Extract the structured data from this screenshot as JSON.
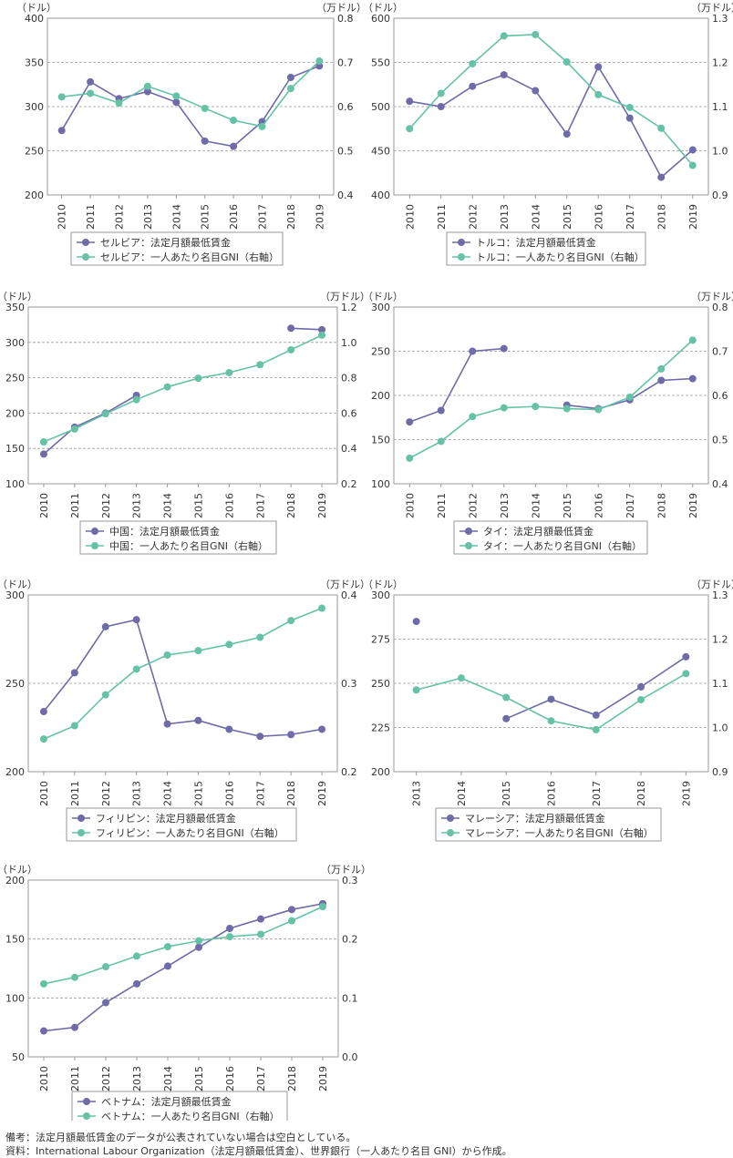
{
  "colors": {
    "wage": "#6f6aa8",
    "gni": "#66c2a7",
    "axis": "#9a9a9a",
    "text": "#333333"
  },
  "units": {
    "left": "（ドル）",
    "right": "（万ドル）"
  },
  "notes": {
    "remark": "備考：法定月額最低賃金のデータが公表されていない場合は空白としている。",
    "source": "資料：International Labour Organization（法定月額最低賃金）、世界銀行（一人あたり名目 GNI）から作成。"
  },
  "chart_data": [
    {
      "type": "line",
      "country": "serbia",
      "x": [
        "2010",
        "2011",
        "2012",
        "2013",
        "2014",
        "2015",
        "2016",
        "2017",
        "2018",
        "2019"
      ],
      "left_ticks": [
        "200",
        "250",
        "300",
        "350",
        "400"
      ],
      "ylim": [
        200,
        400
      ],
      "right_ticks": [
        "0.4",
        "0.5",
        "0.6",
        "0.7",
        "0.8"
      ],
      "y2lim": [
        0.4,
        0.8
      ],
      "series": [
        {
          "name": "セルビア：法定月額最低賃金",
          "axis": "left",
          "values": [
            273,
            328,
            309,
            317,
            305,
            261,
            255,
            283,
            333,
            346
          ]
        },
        {
          "name": "セルビア：一人あたり名目GNI（右軸）",
          "axis": "right",
          "values": [
            0.622,
            0.63,
            0.608,
            0.646,
            0.624,
            0.596,
            0.569,
            0.555,
            0.641,
            0.703
          ]
        }
      ]
    },
    {
      "type": "line",
      "country": "turkey",
      "x": [
        "2010",
        "2011",
        "2012",
        "2013",
        "2014",
        "2015",
        "2016",
        "2017",
        "2018",
        "2019"
      ],
      "left_ticks": [
        "400",
        "450",
        "500",
        "550",
        "600"
      ],
      "ylim": [
        400,
        600
      ],
      "right_ticks": [
        "0.9",
        "1.0",
        "1.1",
        "1.2",
        "1.3"
      ],
      "y2lim": [
        0.9,
        1.3
      ],
      "series": [
        {
          "name": "トルコ：法定月額最低賃金",
          "axis": "left",
          "values": [
            506,
            500,
            523,
            536,
            518,
            469,
            545,
            487,
            420,
            451
          ]
        },
        {
          "name": "トルコ：一人あたり名目GNI（右軸）",
          "axis": "right",
          "values": [
            1.05,
            1.13,
            1.197,
            1.26,
            1.263,
            1.201,
            1.127,
            1.098,
            1.051,
            0.967
          ]
        }
      ]
    },
    {
      "type": "line",
      "country": "china",
      "x": [
        "2010",
        "2011",
        "2012",
        "2013",
        "2014",
        "2015",
        "2016",
        "2017",
        "2018",
        "2019"
      ],
      "left_ticks": [
        "100",
        "150",
        "200",
        "250",
        "300",
        "350"
      ],
      "ylim": [
        100,
        350
      ],
      "right_ticks": [
        "0.2",
        "0.4",
        "0.6",
        "0.8",
        "1.0",
        "1.2"
      ],
      "y2lim": [
        0.2,
        1.2
      ],
      "series": [
        {
          "name": "中国：法定月額最低賃金",
          "axis": "left",
          "values": [
            142,
            180,
            200,
            225,
            null,
            null,
            null,
            null,
            320,
            318
          ]
        },
        {
          "name": "中国：一人あたり名目GNI（右軸）",
          "axis": "right",
          "values": [
            0.437,
            0.51,
            0.596,
            0.676,
            0.748,
            0.797,
            0.829,
            0.874,
            0.958,
            1.041
          ]
        }
      ]
    },
    {
      "type": "line",
      "country": "thailand",
      "x": [
        "2010",
        "2011",
        "2012",
        "2013",
        "2014",
        "2015",
        "2016",
        "2017",
        "2018",
        "2019"
      ],
      "left_ticks": [
        "100",
        "150",
        "200",
        "250",
        "300"
      ],
      "ylim": [
        100,
        300
      ],
      "right_ticks": [
        "0.4",
        "0.5",
        "0.6",
        "0.7",
        "0.8"
      ],
      "y2lim": [
        0.4,
        0.8
      ],
      "series": [
        {
          "name": "タイ：法定月額最低賃金",
          "axis": "left",
          "values": [
            170,
            183,
            250,
            253,
            null,
            189,
            185,
            195,
            217,
            219
          ]
        },
        {
          "name": "タイ：一人あたり名目GNI（右軸）",
          "axis": "right",
          "values": [
            0.458,
            0.496,
            0.552,
            0.572,
            0.575,
            0.57,
            0.568,
            0.596,
            0.66,
            0.725
          ]
        }
      ]
    },
    {
      "type": "line",
      "country": "philippines",
      "x": [
        "2010",
        "2011",
        "2012",
        "2013",
        "2014",
        "2015",
        "2016",
        "2017",
        "2018",
        "2019"
      ],
      "left_ticks": [
        "200",
        "250",
        "300"
      ],
      "ylim": [
        200,
        300
      ],
      "right_ticks": [
        "0.2",
        "0.3",
        "0.4"
      ],
      "y2lim": [
        0.2,
        0.4
      ],
      "series": [
        {
          "name": "フィリピン：法定月額最低賃金",
          "axis": "left",
          "values": [
            234,
            256,
            282,
            286,
            227,
            229,
            224,
            220,
            221,
            224
          ]
        },
        {
          "name": "フィリピン：一人あたり名目GNI（右軸）",
          "axis": "right",
          "values": [
            0.237,
            0.252,
            0.287,
            0.316,
            0.332,
            0.337,
            0.344,
            0.352,
            0.371,
            0.385
          ]
        }
      ]
    },
    {
      "type": "line",
      "country": "malaysia",
      "x": [
        "2013",
        "2014",
        "2015",
        "2016",
        "2017",
        "2018",
        "2019"
      ],
      "left_ticks": [
        "200",
        "225",
        "250",
        "275",
        "300"
      ],
      "ylim": [
        200,
        300
      ],
      "right_ticks": [
        "0.9",
        "1.0",
        "1.1",
        "1.2",
        "1.3"
      ],
      "y2lim": [
        0.9,
        1.3
      ],
      "series": [
        {
          "name": "マレーシア：法定月額最低賃金",
          "axis": "left",
          "values": [
            285,
            null,
            230,
            241,
            232,
            248,
            265
          ]
        },
        {
          "name": "マレーシア：一人あたり名目GNI（右軸）",
          "axis": "right",
          "values": [
            1.085,
            1.112,
            1.068,
            1.015,
            0.995,
            1.063,
            1.122
          ]
        }
      ]
    },
    {
      "type": "line",
      "country": "vietnam",
      "x": [
        "2010",
        "2011",
        "2012",
        "2013",
        "2014",
        "2015",
        "2016",
        "2017",
        "2018",
        "2019"
      ],
      "left_ticks": [
        "50",
        "100",
        "150",
        "200"
      ],
      "ylim": [
        50,
        200
      ],
      "right_ticks": [
        "0.0",
        "0.1",
        "0.2",
        "0.3"
      ],
      "y2lim": [
        0,
        0.3
      ],
      "series": [
        {
          "name": "ベトナム：法定月額最低賃金",
          "axis": "left",
          "values": [
            72,
            75,
            96,
            112,
            127,
            143,
            159,
            167,
            175,
            180
          ]
        },
        {
          "name": "ベトナム：一人あたり名目GNI（右軸）",
          "axis": "right",
          "values": [
            0.124,
            0.135,
            0.153,
            0.171,
            0.187,
            0.197,
            0.204,
            0.208,
            0.231,
            0.255
          ]
        }
      ]
    }
  ]
}
